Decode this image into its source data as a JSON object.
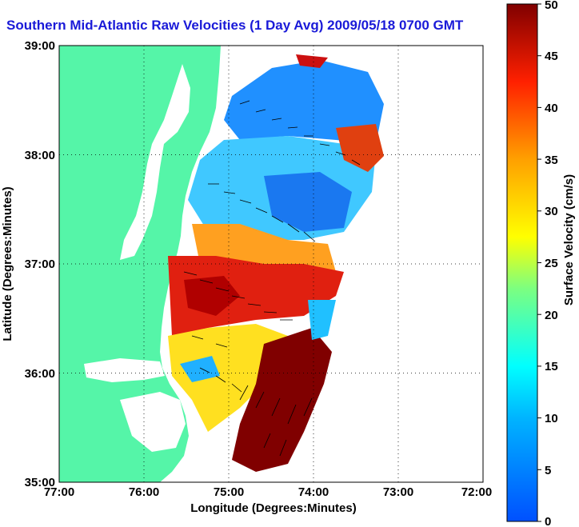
{
  "title": "Southern Mid-Atlantic Raw Velocities (1 Day Avg) 2009/05/18 0700 GMT",
  "map": {
    "xlabel": "Longitude (Degrees:Minutes)",
    "ylabel": "Latitude (Degrees:Minutes)",
    "x_ticks": [
      "77:00",
      "76:00",
      "75:00",
      "74:00",
      "73:00",
      "72:00"
    ],
    "y_ticks": [
      "39:00",
      "38:00",
      "37:00",
      "36:00",
      "35:00"
    ],
    "lon_range": [
      -77,
      -72
    ],
    "lat_range": [
      35,
      39
    ],
    "land_color": "#55f5a8",
    "grid": true
  },
  "colorbar": {
    "label": "Surface Velocity (cm/s)",
    "units": "cm/s",
    "range": [
      0,
      50
    ],
    "ticks": [
      "50",
      "45",
      "40",
      "35",
      "30",
      "25",
      "20",
      "15",
      "10",
      "5",
      "0"
    ],
    "colormap": "jet"
  }
}
